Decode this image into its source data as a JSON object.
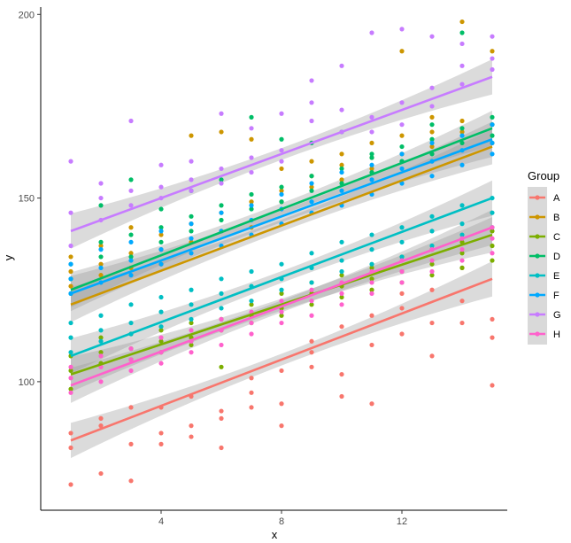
{
  "chart_data": {
    "type": "scatter",
    "xlabel": "x",
    "ylabel": "y",
    "xlim": [
      0,
      15.5
    ],
    "ylim": [
      65,
      202
    ],
    "x_ticks": [
      4,
      8,
      12
    ],
    "y_ticks": [
      100,
      150,
      200
    ],
    "grid": false,
    "legend": {
      "title": "Group",
      "placement": "right"
    },
    "x": [
      1,
      2,
      3,
      4,
      5,
      6,
      7,
      8,
      9,
      10,
      11,
      12,
      13,
      14,
      15
    ],
    "series": [
      {
        "name": "A",
        "color": "#F8766D",
        "fit": {
          "x": [
            1,
            15
          ],
          "y": [
            84,
            128
          ]
        },
        "values": [
          [
            72,
            82,
            86
          ],
          [
            75,
            88,
            90
          ],
          [
            73,
            83,
            93
          ],
          [
            83,
            86,
            93
          ],
          [
            85,
            88,
            96
          ],
          [
            82,
            90,
            92
          ],
          [
            93,
            97,
            101
          ],
          [
            88,
            94,
            103
          ],
          [
            104,
            108,
            111
          ],
          [
            96,
            102,
            115
          ],
          [
            94,
            110,
            118
          ],
          [
            113,
            120,
            124
          ],
          [
            107,
            116,
            125
          ],
          [
            116,
            122,
            131
          ],
          [
            99,
            112,
            117
          ]
        ]
      },
      {
        "name": "B",
        "color": "#CD9600",
        "fit": {
          "x": [
            1,
            15
          ],
          "y": [
            121,
            164
          ]
        },
        "values": [
          [
            126,
            130,
            134
          ],
          [
            129,
            132,
            137
          ],
          [
            131,
            135,
            142
          ],
          [
            132,
            136,
            140
          ],
          [
            167,
            138,
            143
          ],
          [
            168,
            141,
            146
          ],
          [
            166,
            142,
            149
          ],
          [
            149,
            152,
            158
          ],
          [
            153,
            156,
            160
          ],
          [
            155,
            159,
            162
          ],
          [
            158,
            161,
            165
          ],
          [
            190,
            162,
            167
          ],
          [
            164,
            168,
            172
          ],
          [
            198,
            168,
            171
          ],
          [
            190,
            170,
            165
          ]
        ]
      },
      {
        "name": "C",
        "color": "#7CAE00",
        "fit": {
          "x": [
            1,
            15
          ],
          "y": [
            102,
            140
          ]
        },
        "values": [
          [
            103,
            107,
            98
          ],
          [
            105,
            108,
            112
          ],
          [
            106,
            109,
            113
          ],
          [
            108,
            111,
            114
          ],
          [
            110,
            112,
            116
          ],
          [
            104,
            114,
            117
          ],
          [
            116,
            118,
            121
          ],
          [
            118,
            120,
            124
          ],
          [
            121,
            124,
            127
          ],
          [
            123,
            126,
            129
          ],
          [
            125,
            128,
            131
          ],
          [
            127,
            130,
            134
          ],
          [
            129,
            132,
            136
          ],
          [
            131,
            135,
            138
          ],
          [
            133,
            137,
            141
          ]
        ]
      },
      {
        "name": "D",
        "color": "#00BE67",
        "fit": {
          "x": [
            1,
            15
          ],
          "y": [
            125,
            169
          ]
        },
        "values": [
          [
            124,
            128,
            132
          ],
          [
            148,
            134,
            138
          ],
          [
            155,
            134,
            140
          ],
          [
            147,
            138,
            142
          ],
          [
            152,
            141,
            145
          ],
          [
            155,
            144,
            148
          ],
          [
            172,
            147,
            151
          ],
          [
            166,
            149,
            153
          ],
          [
            165,
            152,
            156
          ],
          [
            168,
            154,
            158
          ],
          [
            162,
            157,
            161
          ],
          [
            160,
            160,
            164
          ],
          [
            170,
            162,
            166
          ],
          [
            195,
            165,
            169
          ],
          [
            170,
            167,
            172
          ]
        ]
      },
      {
        "name": "E",
        "color": "#00BFC4",
        "fit": {
          "x": [
            1,
            15
          ],
          "y": [
            107,
            150
          ]
        },
        "values": [
          [
            108,
            112,
            116
          ],
          [
            111,
            114,
            118
          ],
          [
            113,
            116,
            121
          ],
          [
            115,
            119,
            123
          ],
          [
            117,
            121,
            125
          ],
          [
            120,
            124,
            128
          ],
          [
            122,
            126,
            130
          ],
          [
            125,
            128,
            132
          ],
          [
            127,
            131,
            135
          ],
          [
            130,
            133,
            138
          ],
          [
            132,
            136,
            140
          ],
          [
            134,
            138,
            142
          ],
          [
            137,
            141,
            145
          ],
          [
            140,
            143,
            148
          ],
          [
            142,
            146,
            150
          ]
        ]
      },
      {
        "name": "F",
        "color": "#00A9FF",
        "fit": {
          "x": [
            1,
            15
          ],
          "y": [
            124,
            166
          ]
        },
        "values": [
          [
            124,
            128,
            132
          ],
          [
            127,
            131,
            136
          ],
          [
            129,
            133,
            138
          ],
          [
            132,
            136,
            141
          ],
          [
            135,
            139,
            143
          ],
          [
            137,
            141,
            146
          ],
          [
            140,
            144,
            148
          ],
          [
            143,
            147,
            151
          ],
          [
            146,
            149,
            154
          ],
          [
            148,
            152,
            157
          ],
          [
            151,
            155,
            159
          ],
          [
            154,
            158,
            162
          ],
          [
            156,
            160,
            165
          ],
          [
            159,
            163,
            167
          ],
          [
            162,
            165,
            170
          ]
        ]
      },
      {
        "name": "G",
        "color": "#C77CFF",
        "fit": {
          "x": [
            1,
            15
          ],
          "y": [
            141,
            183
          ]
        },
        "values": [
          [
            160,
            146,
            137
          ],
          [
            154,
            150,
            144
          ],
          [
            171,
            152,
            148
          ],
          [
            159,
            153,
            150
          ],
          [
            160,
            155,
            152
          ],
          [
            173,
            158,
            154
          ],
          [
            169,
            161,
            157
          ],
          [
            173,
            163,
            160
          ],
          [
            182,
            176,
            171
          ],
          [
            186,
            174,
            168
          ],
          [
            195,
            172,
            168
          ],
          [
            196,
            176,
            170
          ],
          [
            194,
            180,
            175
          ],
          [
            192,
            186,
            181
          ],
          [
            194,
            188,
            185
          ]
        ]
      },
      {
        "name": "H",
        "color": "#FF61CC",
        "fit": {
          "x": [
            1,
            15
          ],
          "y": [
            99,
            142
          ]
        },
        "values": [
          [
            97,
            101,
            104
          ],
          [
            100,
            104,
            107
          ],
          [
            103,
            106,
            109
          ],
          [
            105,
            108,
            112
          ],
          [
            108,
            111,
            114
          ],
          [
            110,
            114,
            117
          ],
          [
            113,
            116,
            119
          ],
          [
            116,
            119,
            122
          ],
          [
            118,
            122,
            125
          ],
          [
            121,
            124,
            127
          ],
          [
            124,
            127,
            130
          ],
          [
            127,
            130,
            133
          ],
          [
            130,
            133,
            136
          ],
          [
            133,
            136,
            139
          ],
          [
            135,
            139,
            142
          ]
        ]
      }
    ]
  }
}
